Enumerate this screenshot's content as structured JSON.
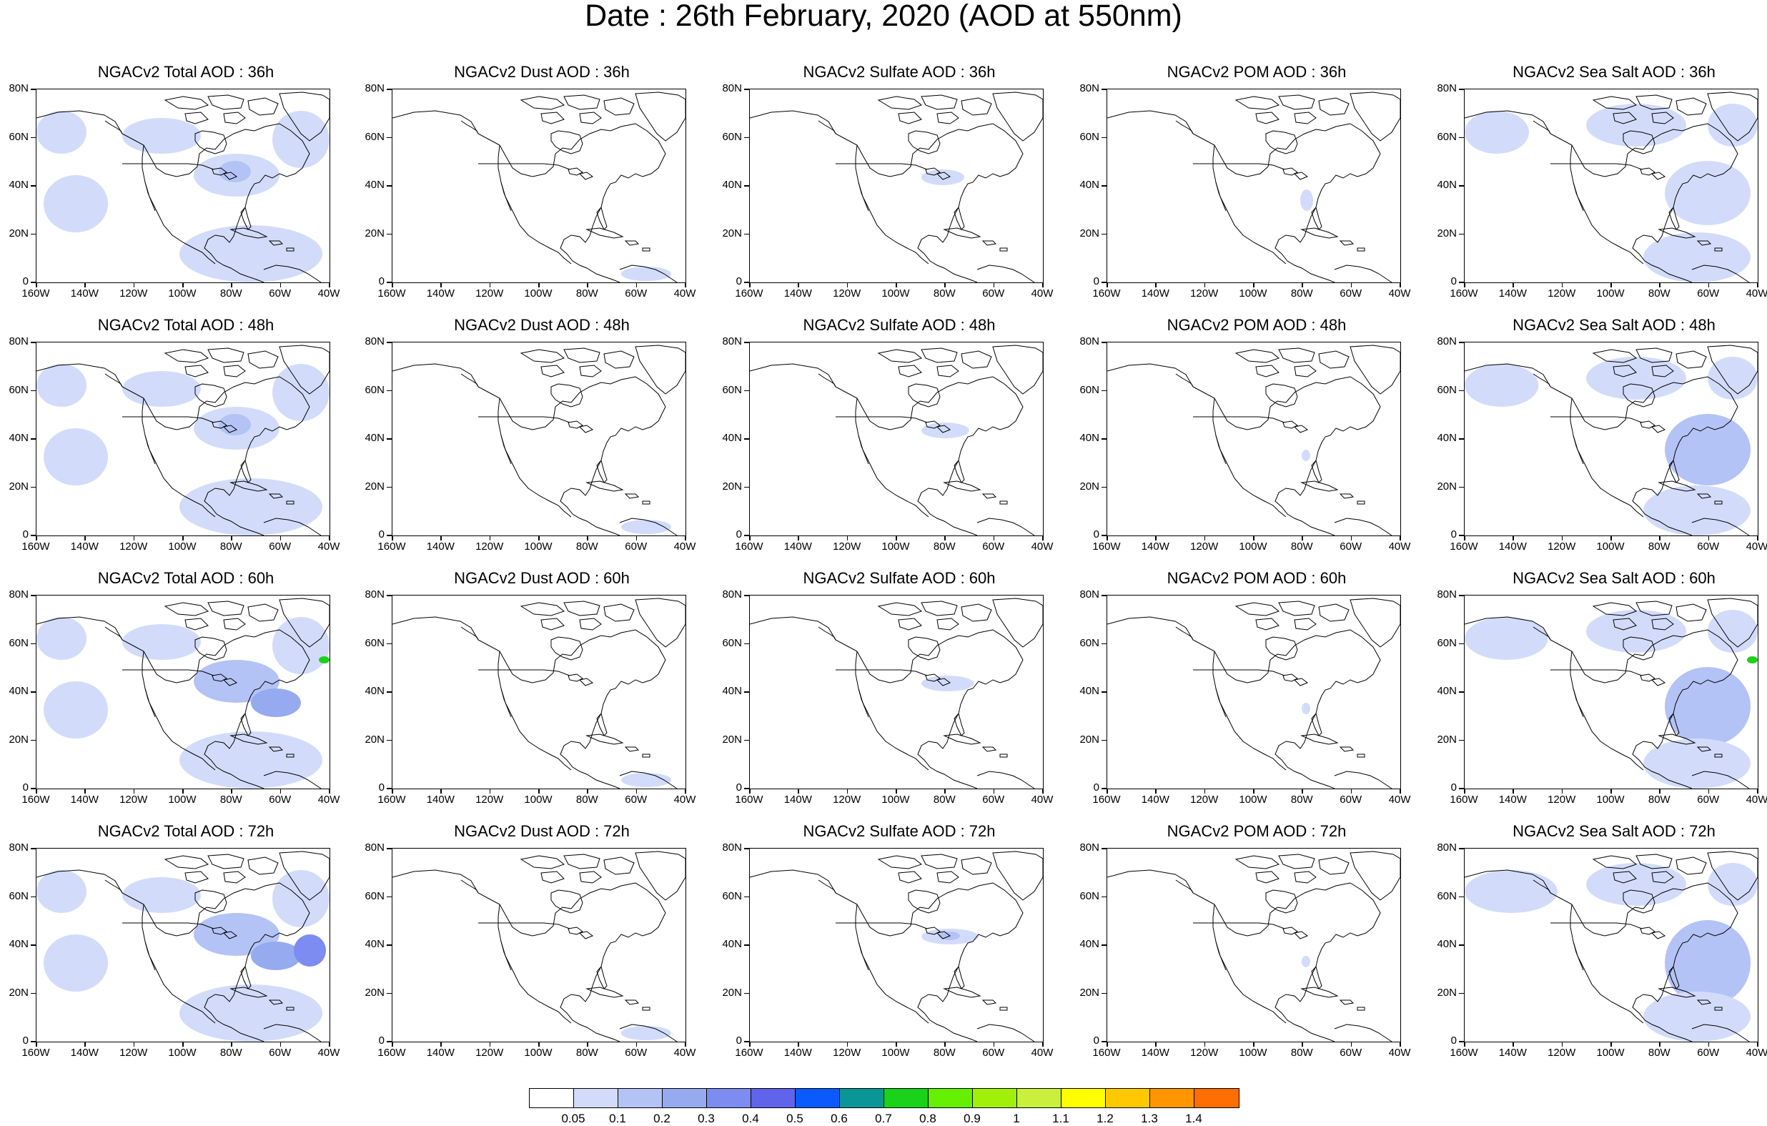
{
  "title": "Date : 26th February, 2020 (AOD at 550nm)",
  "axes": {
    "y_labels": [
      "80N",
      "60N",
      "40N",
      "20N",
      "0"
    ],
    "x_labels": [
      "160W",
      "140W",
      "120W",
      "100W",
      "80W",
      "60W",
      "40W"
    ]
  },
  "panels": [
    [
      {
        "title": "NGACv2 Total AOD : 36h",
        "species": "total",
        "hour": 36
      },
      {
        "title": "NGACv2 Dust AOD : 36h",
        "species": "dust",
        "hour": 36
      },
      {
        "title": "NGACv2 Sulfate AOD : 36h",
        "species": "sulfate",
        "hour": 36
      },
      {
        "title": "NGACv2 POM AOD : 36h",
        "species": "pom",
        "hour": 36
      },
      {
        "title": "NGACv2 Sea Salt AOD : 36h",
        "species": "seasalt",
        "hour": 36
      }
    ],
    [
      {
        "title": "NGACv2 Total AOD : 48h",
        "species": "total",
        "hour": 48
      },
      {
        "title": "NGACv2 Dust AOD : 48h",
        "species": "dust",
        "hour": 48
      },
      {
        "title": "NGACv2 Sulfate AOD : 48h",
        "species": "sulfate",
        "hour": 48
      },
      {
        "title": "NGACv2 POM AOD : 48h",
        "species": "pom",
        "hour": 48
      },
      {
        "title": "NGACv2 Sea Salt AOD : 48h",
        "species": "seasalt",
        "hour": 48
      }
    ],
    [
      {
        "title": "NGACv2 Total AOD : 60h",
        "species": "total",
        "hour": 60
      },
      {
        "title": "NGACv2 Dust AOD : 60h",
        "species": "dust",
        "hour": 60
      },
      {
        "title": "NGACv2 Sulfate AOD : 60h",
        "species": "sulfate",
        "hour": 60
      },
      {
        "title": "NGACv2 POM AOD : 60h",
        "species": "pom",
        "hour": 60
      },
      {
        "title": "NGACv2 Sea Salt AOD : 60h",
        "species": "seasalt",
        "hour": 60
      }
    ],
    [
      {
        "title": "NGACv2 Total AOD : 72h",
        "species": "total",
        "hour": 72
      },
      {
        "title": "NGACv2 Dust AOD : 72h",
        "species": "dust",
        "hour": 72
      },
      {
        "title": "NGACv2 Sulfate AOD : 72h",
        "species": "sulfate",
        "hour": 72
      },
      {
        "title": "NGACv2 POM AOD : 72h",
        "species": "pom",
        "hour": 72
      },
      {
        "title": "NGACv2 Sea Salt  AOD : 72h",
        "species": "seasalt",
        "hour": 72
      }
    ]
  ],
  "colorbar": {
    "labels": [
      "0.05",
      "0.1",
      "0.2",
      "0.3",
      "0.4",
      "0.5",
      "0.6",
      "0.7",
      "0.8",
      "0.9",
      "1",
      "1.1",
      "1.2",
      "1.3",
      "1.4"
    ],
    "colors": [
      "#ffffff",
      "#d2dcfa",
      "#b4c3f5",
      "#96aaf0",
      "#7d8cf0",
      "#5f64eb",
      "#0a5aff",
      "#0a9696",
      "#19d219",
      "#64f000",
      "#a0f00a",
      "#c8f03c",
      "#ffff00",
      "#ffc800",
      "#ff9600",
      "#ff6e00",
      "#ff1e14"
    ]
  }
}
